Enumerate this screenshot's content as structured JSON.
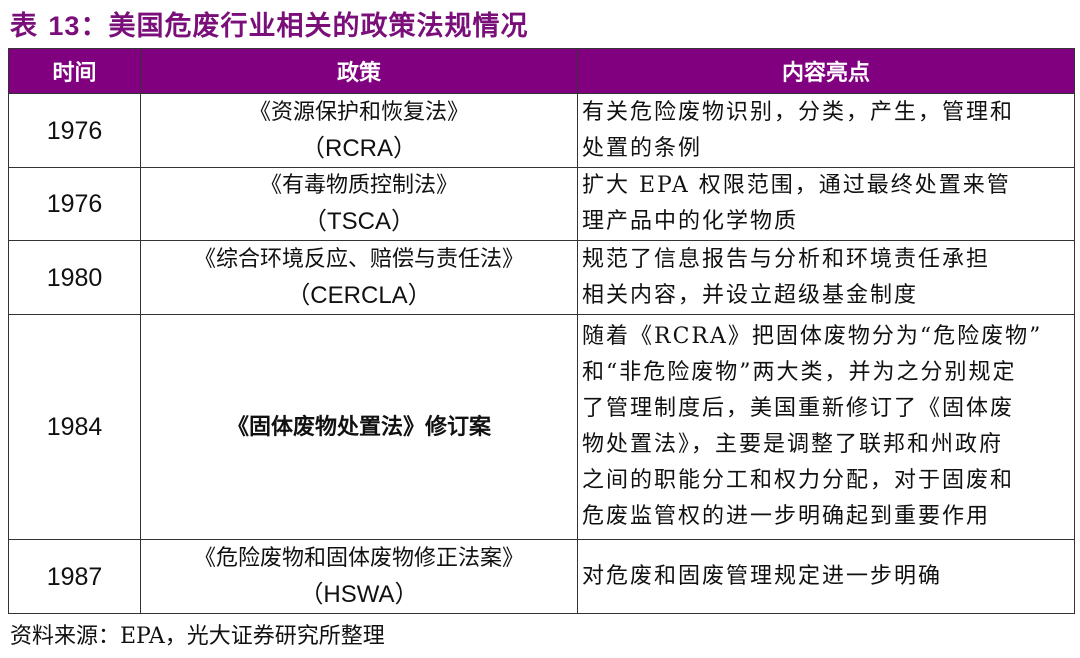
{
  "title": {
    "prefix": "表 ",
    "number": "13",
    "text": "：美国危废行业相关的政策法规情况"
  },
  "colors": {
    "title": "#7a0f7a",
    "header_bg": "#800080"
  },
  "table": {
    "headers": [
      "时间",
      "政策",
      "内容亮点"
    ],
    "rows": [
      {
        "year": "1976",
        "policy": "《资源保护和恢复法》",
        "abbr": "（RCRA）",
        "content": [
          "有关危险废物识别，分类，产生，管理和",
          "处置的条例"
        ]
      },
      {
        "year": "1976",
        "policy": "《有毒物质控制法》",
        "abbr": "（TSCA）",
        "content": [
          "扩大 EPA 权限范围，通过最终处置来管",
          "理产品中的化学物质"
        ]
      },
      {
        "year": "1980",
        "policy": "《综合环境反应、赔偿与责任法》",
        "abbr": "（CERCLA）",
        "content": [
          "规范了信息报告与分析和环境责任承担",
          "相关内容，并设立超级基金制度"
        ]
      },
      {
        "year": "1984",
        "policy": "《固体废物处置法》修订案",
        "abbr": "",
        "content": [
          "随着《RCRA》把固体废物分为“危险废物”",
          "和“非危险废物”两大类，并为之分别规定",
          "了管理制度后，美国重新修订了《固体废",
          "物处置法》，主要是调整了联邦和州政府",
          "之间的职能分工和权力分配，对于固废和",
          "危废监管权的进一步明确起到重要作用"
        ]
      },
      {
        "year": "1987",
        "policy": "《危险废物和固体废物修正法案》",
        "abbr": "（HSWA）",
        "content": [
          "对危废和固废管理规定进一步明确"
        ]
      }
    ]
  },
  "source": "资料来源：EPA，光大证券研究所整理"
}
